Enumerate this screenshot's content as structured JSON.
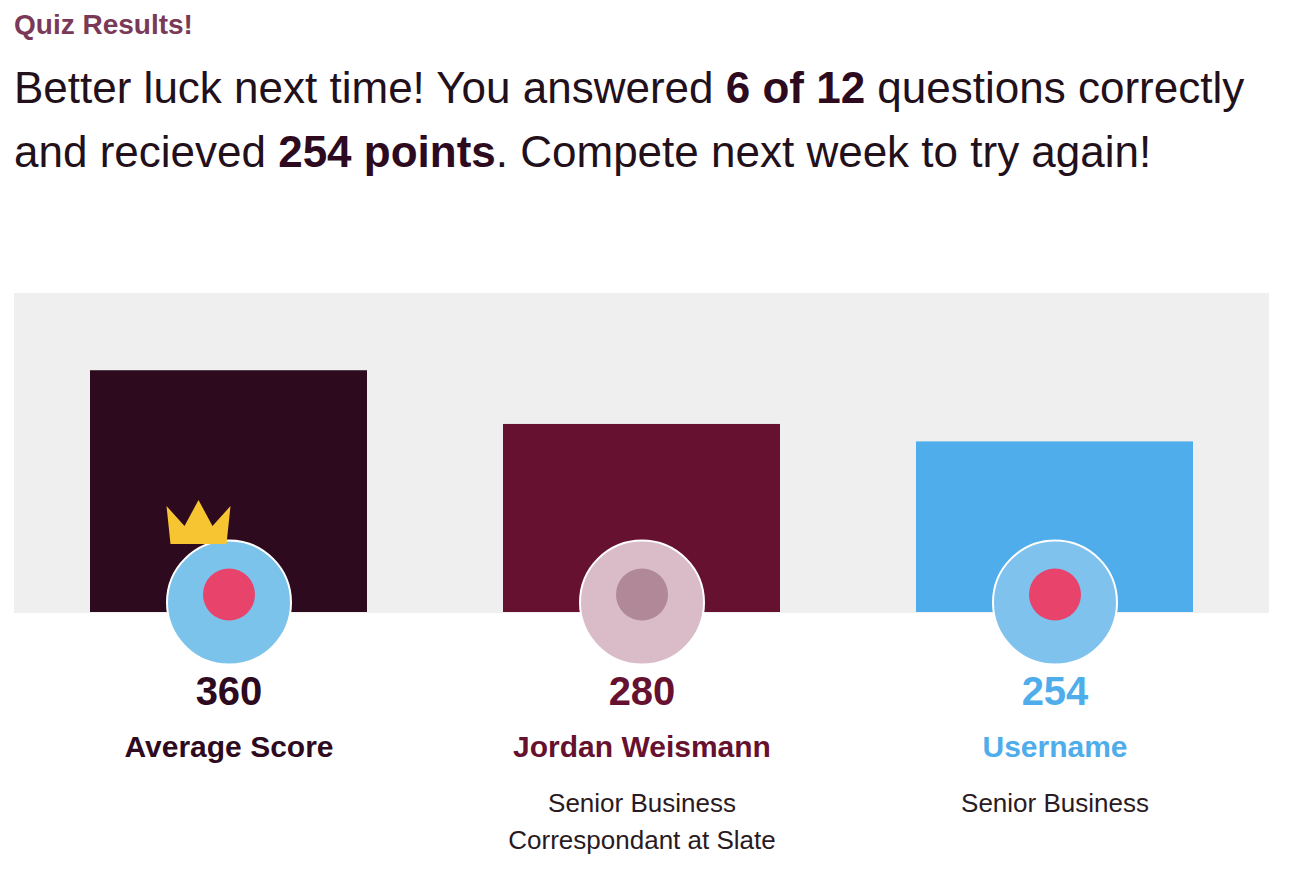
{
  "chart_data": {
    "type": "bar",
    "title": "Quiz Results!",
    "subtitle": [
      {
        "text": "Better luck next time! You answered "
      },
      {
        "text": "6 of 12",
        "bold": true
      },
      {
        "text": " questions correctly and recieved "
      },
      {
        "text": "254 points",
        "bold": true
      },
      {
        "text": ". Compete next week to try again!"
      }
    ],
    "categories": [
      "Average Score",
      "Jordan Weismann",
      "Username"
    ],
    "descriptions": [
      null,
      "Senior Business\nCorrespondant at Slate",
      "Senior Business"
    ],
    "values": [
      360,
      280,
      254
    ],
    "colors": [
      "#2d0a1e",
      "#66112f",
      "#4eadea"
    ],
    "ylim": [
      0,
      475
    ],
    "tick_labels": false,
    "data_labels": true
  }
}
